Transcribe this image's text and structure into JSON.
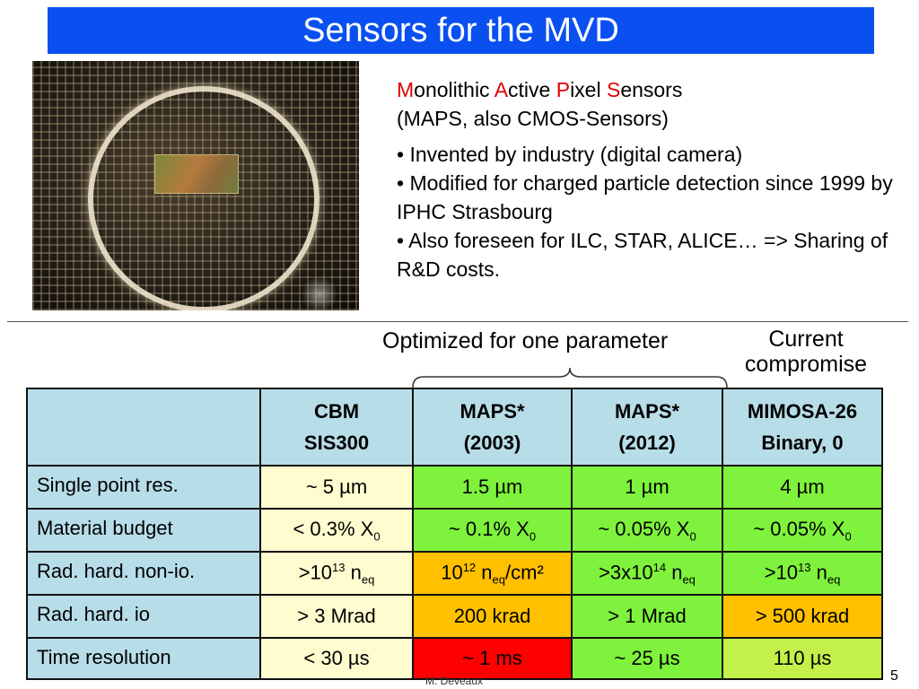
{
  "title": "Sensors for the MVD",
  "heading": {
    "w1_initial": "M",
    "w1_rest": "onolithic ",
    "w2_initial": "A",
    "w2_rest": "ctive ",
    "w3_initial": "P",
    "w3_rest": "ixel ",
    "w4_initial": "S",
    "w4_rest": "ensors",
    "subtitle": "(MAPS, also CMOS-Sensors)"
  },
  "bullets": [
    "• Invented by industry (digital camera)",
    "• Modified for charged particle detection since 1999 by IPHC Strasbourg",
    "• Also foreseen for ILC, STAR, ALICE… => Sharing of R&D costs."
  ],
  "annotations": {
    "optimized": "Optimized for one parameter",
    "current": "Current compromise"
  },
  "table": {
    "columns": [
      {
        "line1": "CBM",
        "line2": "SIS300"
      },
      {
        "line1": "MAPS*",
        "line2": "(2003)"
      },
      {
        "line1": "MAPS*",
        "line2": "(2012)"
      },
      {
        "line1": "MIMOSA-26",
        "line2": "Binary, 0"
      }
    ],
    "rows": {
      "spr": {
        "label": "Single point res.",
        "cells": [
          "~ 5 µm",
          "1.5 µm",
          "1 µm",
          "4 µm"
        ]
      },
      "mat": {
        "label": "Material budget",
        "cells": [
          {
            "pre": "< 0.3% X",
            "sub": "0"
          },
          {
            "pre": "~ 0.1% X",
            "sub": "0"
          },
          {
            "pre": "~ 0.05% X",
            "sub": "0"
          },
          {
            "pre": "~ 0.05% X",
            "sub": "0"
          }
        ]
      },
      "nonio": {
        "label": "Rad. hard. non-io.",
        "cells": [
          {
            "base": ">10",
            "exp": "13",
            "mid": " n",
            "sub": "eq",
            "post": ""
          },
          {
            "base": "10",
            "exp": "12",
            "mid": " n",
            "sub": "eq",
            "post": "/cm²"
          },
          {
            "base": ">3x10",
            "exp": "14",
            "mid": " n",
            "sub": "eq",
            "post": ""
          },
          {
            "base": ">10",
            "exp": "13",
            "mid": " n",
            "sub": "eq",
            "post": ""
          }
        ]
      },
      "io": {
        "label": "Rad. hard. io",
        "cells": [
          "> 3 Mrad",
          "200 krad",
          "> 1 Mrad",
          "> 500 krad"
        ]
      },
      "time": {
        "label": "Time resolution",
        "cells": [
          "< 30 µs",
          "~ 1 ms",
          "~ 25 µs",
          "110 µs"
        ]
      }
    }
  },
  "colors": {
    "title_bar": "#0a50f0",
    "header_cells": "#b7dde8",
    "cream": "#fffcd0",
    "green": "#7ef23c",
    "orange": "#ffc000",
    "red": "#ff0000",
    "yellowgreen": "#c4f04a"
  },
  "footer": {
    "author": "M. Deveaux",
    "page": "5"
  }
}
